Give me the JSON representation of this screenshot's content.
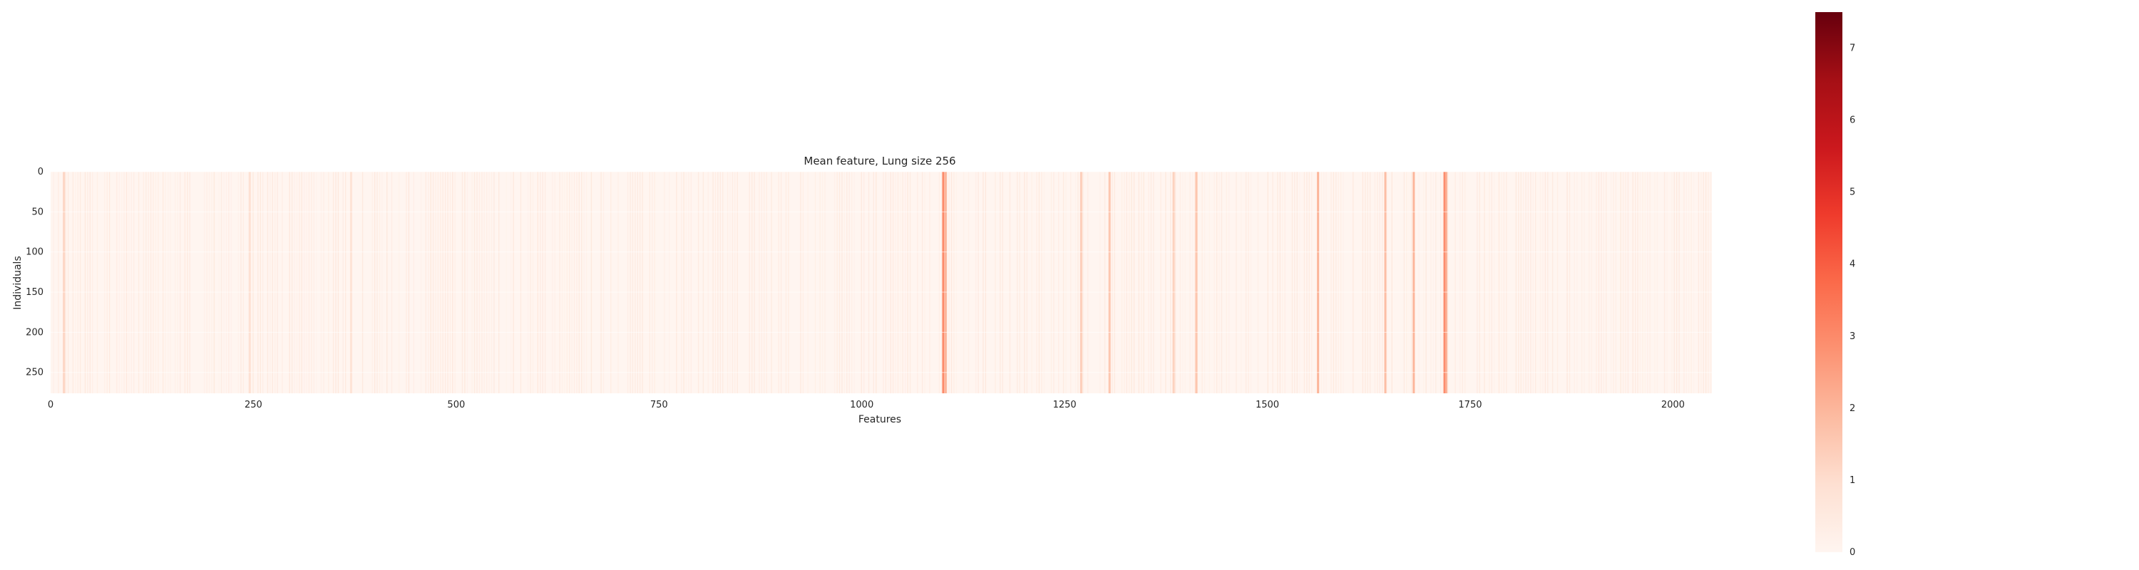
{
  "chart_data": {
    "type": "heatmap",
    "title": "Mean feature, Lung size 256",
    "xlabel": "Features",
    "ylabel": "Individuals",
    "x_range": [
      0,
      2048
    ],
    "y_range": [
      0,
      276
    ],
    "x_ticks": [
      "0",
      "250",
      "500",
      "750",
      "1000",
      "1250",
      "1500",
      "1750",
      "2000"
    ],
    "y_ticks": [
      "0",
      "50",
      "100",
      "150",
      "200",
      "250"
    ],
    "grid": true,
    "colormap": "Reds",
    "colorbar": {
      "min": 0,
      "max": 7.5,
      "ticks": [
        "0",
        "1",
        "2",
        "3",
        "4",
        "5",
        "6",
        "7"
      ],
      "colors": [
        "#fff5f0",
        "#fee0d2",
        "#fcbba1",
        "#fc9272",
        "#fb6a4a",
        "#ef3b2c",
        "#cb181d",
        "#a50f15",
        "#67000d"
      ]
    },
    "highlighted_features": [
      {
        "feature": 16,
        "mean_value": 1.2
      },
      {
        "feature": 245,
        "mean_value": 0.9
      },
      {
        "feature": 370,
        "mean_value": 0.8
      },
      {
        "feature": 1100,
        "mean_value": 3.0
      },
      {
        "feature": 1103,
        "mean_value": 2.0
      },
      {
        "feature": 1270,
        "mean_value": 1.4
      },
      {
        "feature": 1305,
        "mean_value": 1.6
      },
      {
        "feature": 1384,
        "mean_value": 1.3
      },
      {
        "feature": 1412,
        "mean_value": 1.6
      },
      {
        "feature": 1562,
        "mean_value": 2.0
      },
      {
        "feature": 1645,
        "mean_value": 1.8
      },
      {
        "feature": 1680,
        "mean_value": 2.0
      },
      {
        "feature": 1718,
        "mean_value": 3.0
      },
      {
        "feature": 1720,
        "mean_value": 2.2
      }
    ]
  }
}
